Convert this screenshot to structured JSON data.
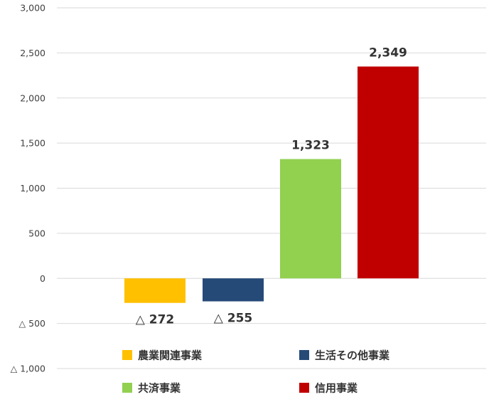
{
  "chart_data": {
    "type": "bar",
    "categories": [
      "農業関連事業",
      "生活その他事業",
      "共済事業",
      "信用事業"
    ],
    "values": [
      -272,
      -255,
      1323,
      2349
    ],
    "data_labels": [
      "△ 272",
      "△ 255",
      "1,323",
      "2,349"
    ],
    "colors": [
      "#FFC000",
      "#264A78",
      "#92D050",
      "#C00000"
    ],
    "ylim": [
      -1000,
      3000
    ],
    "yticks": [
      3000,
      2500,
      2000,
      1500,
      1000,
      500,
      0,
      -500,
      -1000
    ],
    "ytick_labels": [
      "3,000",
      "2,500",
      "2,000",
      "1,500",
      "1,000",
      "500",
      "0",
      "△ 500",
      "△ 1,000"
    ],
    "grid": true,
    "legend": {
      "placement": "bottom",
      "items": [
        {
          "label": "農業関連事業",
          "color": "#FFC000"
        },
        {
          "label": "生活その他事業",
          "color": "#264A78"
        },
        {
          "label": "共済事業",
          "color": "#92D050"
        },
        {
          "label": "信用事業",
          "color": "#C00000"
        }
      ]
    }
  }
}
